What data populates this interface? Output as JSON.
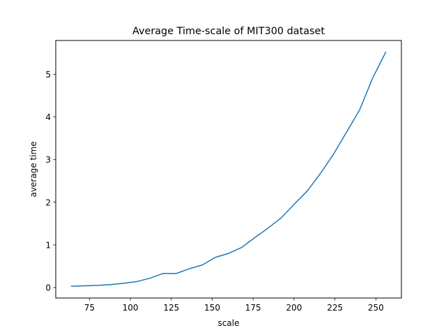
{
  "chart_data": {
    "type": "line",
    "title": "Average Time-scale of MIT300 dataset",
    "xlabel": "scale",
    "ylabel": "average time",
    "xlim": [
      54.4,
      265.6
    ],
    "ylim": [
      -0.246,
      5.795
    ],
    "xticks": [
      75,
      100,
      125,
      150,
      175,
      200,
      225,
      250
    ],
    "yticks": [
      0,
      1,
      2,
      3,
      4,
      5
    ],
    "grid": false,
    "series": [
      {
        "color": "#1f77b4",
        "x": [
          64,
          72,
          80,
          88,
          96,
          104,
          112,
          120,
          128,
          136,
          144,
          152,
          160,
          168,
          176,
          184,
          192,
          200,
          208,
          216,
          224,
          232,
          240,
          248,
          256
        ],
        "y": [
          0.03,
          0.04,
          0.05,
          0.07,
          0.1,
          0.14,
          0.22,
          0.33,
          0.33,
          0.44,
          0.53,
          0.71,
          0.8,
          0.94,
          1.17,
          1.39,
          1.63,
          1.95,
          2.26,
          2.67,
          3.12,
          3.64,
          4.16,
          4.91,
          5.52
        ]
      }
    ]
  }
}
